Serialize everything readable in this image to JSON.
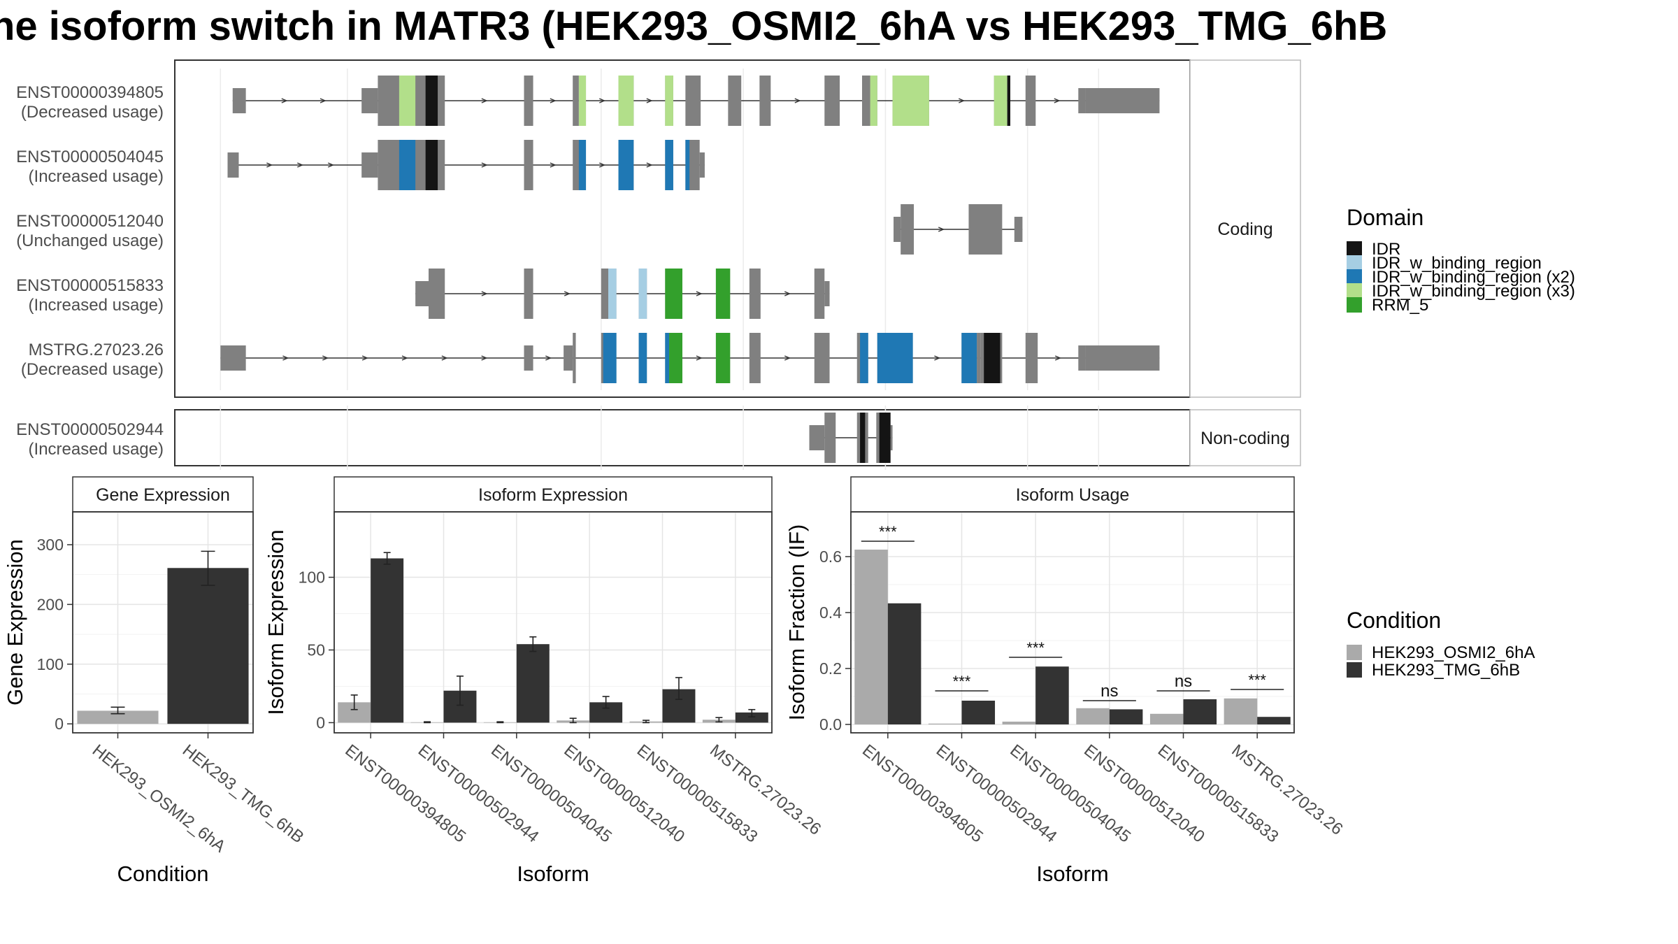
{
  "title": "he isoform switch in MATR3 (HEK293_OSMI2_6hA vs HEK293_TMG_6hB",
  "colors": {
    "IDR": "#141414",
    "IDR_w_binding_region": "#a6cee3",
    "IDR_w_binding_region (x2)": "#1f78b4",
    "IDR_w_binding_region (x3)": "#b2df8a",
    "RRM_5": "#33a02c",
    "exon": "#808080",
    "cond_A": "#aaaaaa",
    "cond_B": "#333333"
  },
  "structure": {
    "coding_label": "Coding",
    "noncoding_label": "Non-coding",
    "coding_tracks": [
      {
        "id": "ENST00000394805",
        "usage": "(Decreased usage)",
        "exons": [
          [
            0.057,
            0.07,
            "s"
          ],
          [
            0.184,
            0.2,
            "s"
          ],
          [
            0.2,
            0.266,
            "t"
          ],
          [
            0.344,
            0.353,
            "t"
          ],
          [
            0.392,
            0.398,
            "t"
          ],
          [
            0.398,
            0.405,
            "t"
          ],
          [
            0.437,
            0.452,
            "t"
          ],
          [
            0.483,
            0.491,
            "t"
          ],
          [
            0.503,
            0.518,
            "t"
          ],
          [
            0.545,
            0.558,
            "t"
          ],
          [
            0.576,
            0.587,
            "t"
          ],
          [
            0.64,
            0.655,
            "t"
          ],
          [
            0.677,
            0.685,
            "t"
          ],
          [
            0.685,
            0.692,
            "t"
          ],
          [
            0.707,
            0.743,
            "t"
          ],
          [
            0.807,
            0.82,
            "t"
          ],
          [
            0.838,
            0.848,
            "t"
          ],
          [
            0.89,
            0.897,
            "s"
          ],
          [
            0.897,
            0.97,
            "s"
          ]
        ],
        "domains": [
          [
            0.221,
            0.237,
            "IDR_w_binding_region (x3)"
          ],
          [
            0.247,
            0.259,
            "IDR"
          ],
          [
            0.398,
            0.405,
            "IDR_w_binding_region (x3)"
          ],
          [
            0.437,
            0.452,
            "IDR_w_binding_region (x3)"
          ],
          [
            0.483,
            0.491,
            "IDR_w_binding_region (x3)"
          ],
          [
            0.685,
            0.692,
            "IDR_w_binding_region (x3)"
          ],
          [
            0.707,
            0.743,
            "IDR_w_binding_region (x3)"
          ],
          [
            0.807,
            0.82,
            "IDR_w_binding_region (x3)"
          ],
          [
            0.82,
            0.823,
            "IDR"
          ]
        ]
      },
      {
        "id": "ENST00000504045",
        "usage": "(Increased usage)",
        "exons": [
          [
            0.052,
            0.063,
            "s"
          ],
          [
            0.184,
            0.2,
            "s"
          ],
          [
            0.2,
            0.266,
            "t"
          ],
          [
            0.344,
            0.353,
            "t"
          ],
          [
            0.392,
            0.405,
            "t"
          ],
          [
            0.437,
            0.452,
            "t"
          ],
          [
            0.483,
            0.491,
            "t"
          ],
          [
            0.503,
            0.517,
            "t"
          ],
          [
            0.517,
            0.522,
            "s"
          ]
        ],
        "domains": [
          [
            0.221,
            0.237,
            "IDR_w_binding_region (x2)"
          ],
          [
            0.247,
            0.259,
            "IDR"
          ],
          [
            0.398,
            0.405,
            "IDR_w_binding_region (x2)"
          ],
          [
            0.437,
            0.452,
            "IDR_w_binding_region (x2)"
          ],
          [
            0.483,
            0.491,
            "IDR_w_binding_region (x2)"
          ],
          [
            0.503,
            0.507,
            "IDR_w_binding_region (x2)"
          ]
        ]
      },
      {
        "id": "ENST00000512040",
        "usage": "(Unchanged usage)",
        "exons": [
          [
            0.708,
            0.715,
            "s"
          ],
          [
            0.715,
            0.728,
            "t"
          ],
          [
            0.782,
            0.815,
            "t"
          ],
          [
            0.827,
            0.835,
            "s"
          ]
        ],
        "domains": []
      },
      {
        "id": "ENST00000515833",
        "usage": "(Increased usage)",
        "exons": [
          [
            0.237,
            0.25,
            "s"
          ],
          [
            0.25,
            0.266,
            "t"
          ],
          [
            0.344,
            0.353,
            "t"
          ],
          [
            0.42,
            0.427,
            "t"
          ],
          [
            0.427,
            0.435,
            "t"
          ],
          [
            0.457,
            0.465,
            "t"
          ],
          [
            0.483,
            0.5,
            "t"
          ],
          [
            0.533,
            0.547,
            "t"
          ],
          [
            0.566,
            0.577,
            "t"
          ],
          [
            0.63,
            0.64,
            "t"
          ],
          [
            0.64,
            0.645,
            "s"
          ]
        ],
        "domains": [
          [
            0.427,
            0.435,
            "IDR_w_binding_region"
          ],
          [
            0.457,
            0.465,
            "IDR_w_binding_region"
          ],
          [
            0.483,
            0.5,
            "RRM_5"
          ],
          [
            0.533,
            0.547,
            "RRM_5"
          ]
        ]
      },
      {
        "id": "MSTRG.27023.26",
        "usage": "(Decreased usage)",
        "exons": [
          [
            0.045,
            0.07,
            "s"
          ],
          [
            0.344,
            0.353,
            "s"
          ],
          [
            0.383,
            0.392,
            "s"
          ],
          [
            0.392,
            0.395,
            "t"
          ],
          [
            0.42,
            0.435,
            "t"
          ],
          [
            0.457,
            0.465,
            "t"
          ],
          [
            0.483,
            0.5,
            "t"
          ],
          [
            0.533,
            0.547,
            "t"
          ],
          [
            0.566,
            0.577,
            "t"
          ],
          [
            0.63,
            0.645,
            "t"
          ],
          [
            0.672,
            0.683,
            "t"
          ],
          [
            0.692,
            0.727,
            "t"
          ],
          [
            0.775,
            0.79,
            "t"
          ],
          [
            0.79,
            0.794,
            "t"
          ],
          [
            0.794,
            0.815,
            "t"
          ],
          [
            0.838,
            0.85,
            "t"
          ],
          [
            0.89,
            0.897,
            "s"
          ],
          [
            0.897,
            0.97,
            "s"
          ]
        ],
        "domains": [
          [
            0.422,
            0.435,
            "IDR_w_binding_region (x2)"
          ],
          [
            0.457,
            0.465,
            "IDR_w_binding_region (x2)"
          ],
          [
            0.483,
            0.487,
            "IDR_w_binding_region (x2)"
          ],
          [
            0.487,
            0.5,
            "RRM_5"
          ],
          [
            0.533,
            0.547,
            "RRM_5"
          ],
          [
            0.675,
            0.683,
            "IDR_w_binding_region (x2)"
          ],
          [
            0.692,
            0.727,
            "IDR_w_binding_region (x2)"
          ],
          [
            0.775,
            0.79,
            "IDR_w_binding_region (x2)"
          ],
          [
            0.797,
            0.813,
            "IDR"
          ]
        ]
      }
    ],
    "noncoding_tracks": [
      {
        "id": "ENST00000502944",
        "usage": "(Increased usage)",
        "exons": [
          [
            0.625,
            0.64,
            "s"
          ],
          [
            0.64,
            0.651,
            "t"
          ],
          [
            0.672,
            0.683,
            "t"
          ],
          [
            0.691,
            0.705,
            "t"
          ],
          [
            0.705,
            0.707,
            "s"
          ]
        ],
        "domains": [
          [
            0.675,
            0.68,
            "IDR"
          ],
          [
            0.694,
            0.705,
            "IDR"
          ]
        ]
      }
    ]
  },
  "legend_domain": {
    "title": "Domain",
    "items": [
      "IDR",
      "IDR_w_binding_region",
      "IDR_w_binding_region (x2)",
      "IDR_w_binding_region (x3)",
      "RRM_5"
    ]
  },
  "legend_condition": {
    "title": "Condition",
    "items": [
      "HEK293_OSMI2_6hA",
      "HEK293_TMG_6hB"
    ]
  },
  "chart_data": [
    {
      "type": "bar",
      "title": "Gene Expression",
      "xlabel": "Condition",
      "ylabel": "Gene Expression",
      "categories": [
        "HEK293_OSMI2_6hA",
        "HEK293_TMG_6hB"
      ],
      "values": [
        22,
        261
      ],
      "errors": [
        [
          17,
          28
        ],
        [
          232,
          289
        ]
      ],
      "ylim": [
        -15,
        355
      ],
      "yticks": [
        0,
        100,
        200,
        300
      ]
    },
    {
      "type": "bar",
      "title": "Isoform Expression",
      "xlabel": "Isoform",
      "ylabel": "Isoform Expression",
      "categories": [
        "ENST00000394805",
        "ENST00000502944",
        "ENST00000504045",
        "ENST00000512040",
        "ENST00000515833",
        "MSTRG.27023.26"
      ],
      "series": [
        {
          "name": "HEK293_OSMI2_6hA",
          "values": [
            14,
            0.3,
            0.3,
            1.5,
            0.8,
            2
          ],
          "errors": [
            [
              9,
              19
            ],
            [
              0,
              0.6
            ],
            [
              0,
              0.6
            ],
            [
              0,
              3
            ],
            [
              0,
              1.6
            ],
            [
              0.5,
              3.5
            ]
          ]
        },
        {
          "name": "HEK293_TMG_6hB",
          "values": [
            113,
            22,
            54,
            14,
            23,
            7
          ],
          "errors": [
            [
              109,
              117
            ],
            [
              12,
              32
            ],
            [
              49,
              59
            ],
            [
              10,
              18
            ],
            [
              16,
              31
            ],
            [
              4,
              9
            ]
          ]
        }
      ],
      "ylim": [
        -7,
        145
      ],
      "yticks": [
        0,
        50,
        100
      ]
    },
    {
      "type": "bar",
      "title": "Isoform Usage",
      "xlabel": "Isoform",
      "ylabel": "Isoform Fraction (IF)",
      "categories": [
        "ENST00000394805",
        "ENST00000502944",
        "ENST00000504045",
        "ENST00000512040",
        "ENST00000515833",
        "MSTRG.27023.26"
      ],
      "series": [
        {
          "name": "HEK293_OSMI2_6hA",
          "values": [
            0.625,
            0.003,
            0.01,
            0.058,
            0.038,
            0.093
          ]
        },
        {
          "name": "HEK293_TMG_6hB",
          "values": [
            0.433,
            0.085,
            0.207,
            0.054,
            0.09,
            0.027
          ]
        }
      ],
      "significance": [
        "***",
        "***",
        "***",
        "ns",
        "ns",
        "***"
      ],
      "sig_y": [
        0.655,
        0.12,
        0.24,
        0.085,
        0.12,
        0.125
      ],
      "ylim": [
        -0.03,
        0.76
      ],
      "yticks": [
        0.0,
        0.2,
        0.4,
        0.6
      ],
      "ytick_labels": [
        "0.0",
        "0.2",
        "0.4",
        "0.6"
      ]
    }
  ]
}
